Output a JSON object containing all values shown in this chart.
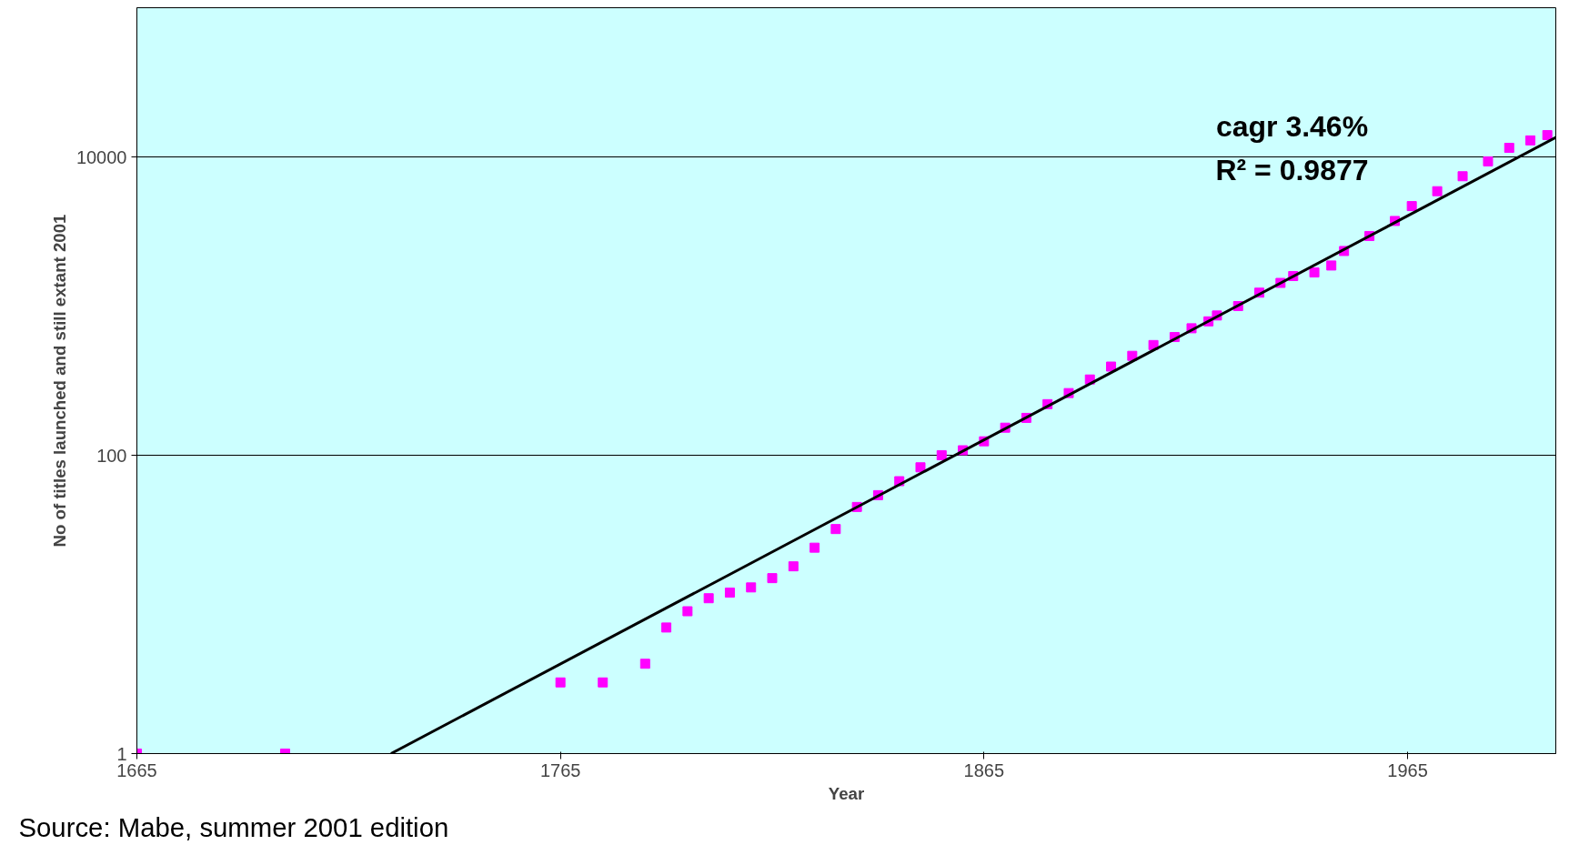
{
  "chart_data": {
    "type": "scatter",
    "xlabel": "Year",
    "ylabel": "No of titles launched and still extant 2001",
    "log": "y",
    "xlim": [
      1665,
      2000
    ],
    "ylim": [
      1,
      100000
    ],
    "xticks": [
      1665,
      1765,
      1865,
      1965
    ],
    "yticks": [
      1,
      100,
      10000
    ],
    "grid": "y",
    "series": [
      {
        "marker": "square",
        "color": "#ff00ff",
        "x": [
          1665,
          1700,
          1765,
          1775,
          1785,
          1790,
          1795,
          1800,
          1805,
          1810,
          1815,
          1820,
          1825,
          1830,
          1835,
          1840,
          1845,
          1850,
          1855,
          1860,
          1865,
          1870,
          1875,
          1880,
          1885,
          1890,
          1895,
          1900,
          1905,
          1910,
          1914,
          1918,
          1920,
          1925,
          1930,
          1935,
          1938,
          1943,
          1947,
          1950,
          1956,
          1962,
          1966,
          1972,
          1978,
          1984,
          1989,
          1994,
          1998
        ],
        "values": [
          1,
          1,
          3,
          3,
          4,
          7,
          9,
          11,
          12,
          13,
          15,
          18,
          24,
          32,
          45,
          54,
          67,
          83,
          100,
          108,
          124,
          153,
          178,
          220,
          261,
          322,
          393,
          464,
          548,
          620,
          710,
          790,
          865,
          1000,
          1230,
          1430,
          1590,
          1680,
          1870,
          2340,
          2950,
          3720,
          4680,
          5890,
          7420,
          9330,
          11500,
          12900,
          14000
        ]
      },
      {
        "type": "line",
        "color": "#000000",
        "x": [
          1725,
          2000
        ],
        "values": [
          1,
          13500
        ]
      }
    ],
    "annotations": [
      "cagr 3.46%",
      "R² = 0.9877",
      "Source: Mabe, summer 2001 edition"
    ]
  }
}
